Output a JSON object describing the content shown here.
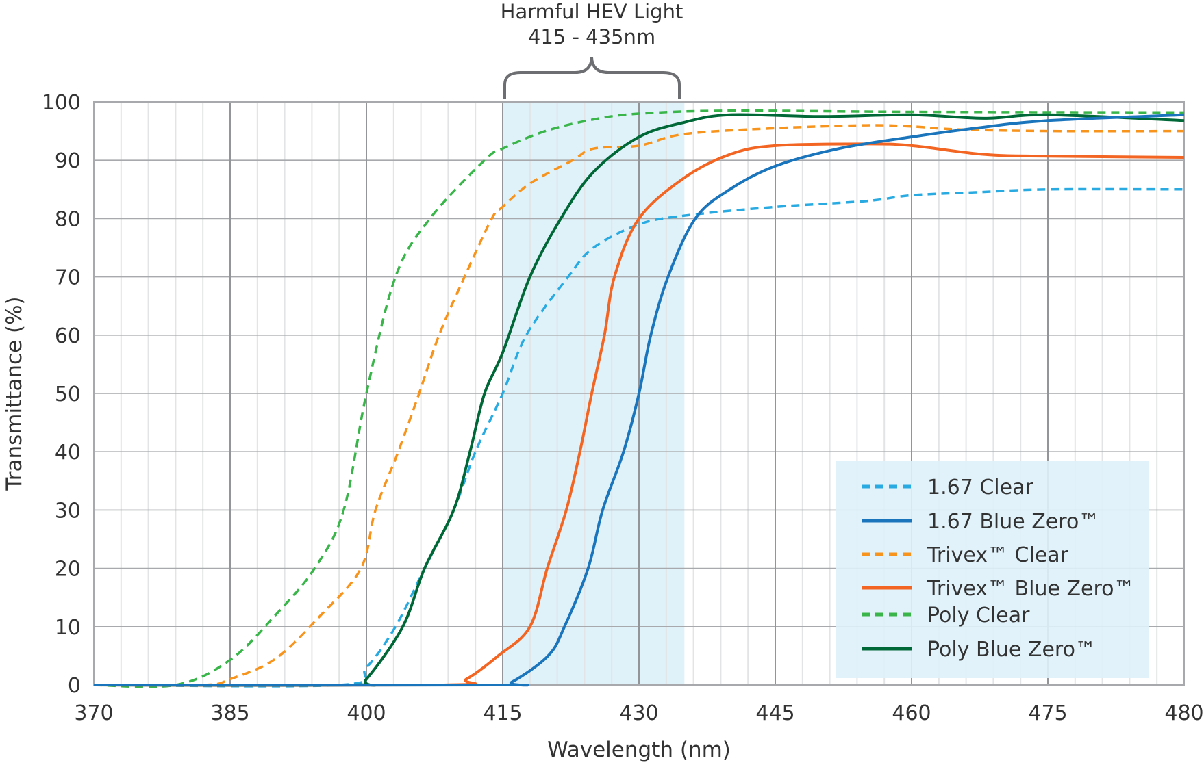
{
  "chart_data": {
    "type": "line",
    "xlabel": "Wavelength (nm)",
    "ylabel": "Transmittance (%)",
    "x_tick_labels": [
      "370",
      "385",
      "400",
      "415",
      "430",
      "445",
      "460",
      "475",
      "480"
    ],
    "y_tick_labels": [
      "0",
      "10",
      "20",
      "30",
      "40",
      "50",
      "60",
      "70",
      "80",
      "90",
      "100"
    ],
    "ylim": [
      0,
      100
    ],
    "xlim": [
      370,
      480
    ],
    "grid": true,
    "legend_placement": "bottom-right",
    "annotation": {
      "line1": "Harmful HEV Light",
      "line2": "415 - 435nm",
      "band": [
        415,
        435
      ],
      "band_color": "#dff1f9"
    },
    "series": [
      {
        "name": "1.67  Clear",
        "style": "dashed",
        "color": "#29abe2",
        "x": [
          370,
          397,
          400,
          403.2,
          406.4,
          409.6,
          412,
          415,
          417.6,
          422.2,
          425,
          430,
          435,
          445,
          455,
          460,
          467,
          475,
          480
        ],
        "y": [
          0,
          0,
          3,
          10,
          20,
          30,
          40,
          50,
          60,
          70,
          75,
          79,
          80.5,
          82,
          83,
          84,
          84.5,
          85,
          85
        ]
      },
      {
        "name": "1.67  Blue Zero™",
        "style": "solid",
        "color": "#1b75bc",
        "x": [
          370,
          414,
          416,
          420,
          421.8,
          424.4,
          426,
          428.3,
          430,
          431.3,
          433.2,
          436.2,
          440,
          445,
          452,
          460,
          467,
          475,
          480
        ],
        "y": [
          0,
          0,
          0.5,
          5,
          10,
          20,
          30,
          40,
          50,
          60,
          70,
          80,
          85,
          89,
          92,
          94,
          95.5,
          96.8,
          97.8
        ]
      },
      {
        "name": "Trivex™ Clear",
        "style": "dashed",
        "color": "#f7941d",
        "x": [
          370,
          382,
          385,
          390,
          395,
          399.4,
          401,
          403.5,
          405.8,
          408,
          410.8,
          413.8,
          415,
          418,
          422.7,
          425,
          430,
          435,
          445,
          455,
          460,
          465,
          475,
          480
        ],
        "y": [
          0,
          0,
          1,
          4.5,
          12,
          20,
          30,
          40,
          50,
          60,
          70,
          80,
          82,
          86,
          90,
          92,
          92.5,
          94.5,
          95.5,
          96,
          95.8,
          95.3,
          95,
          95
        ]
      },
      {
        "name": "Trivex™ Blue Zero™",
        "style": "solid",
        "color": "#f26522",
        "x": [
          370,
          408.5,
          411,
          414.5,
          418,
          419.9,
          422,
          423.5,
          424.8,
          426.2,
          427.3,
          430,
          435,
          440,
          445,
          455,
          460,
          468,
          475,
          480
        ],
        "y": [
          0,
          0,
          1,
          5,
          10,
          20,
          30,
          40,
          50,
          60,
          70,
          80,
          87,
          91,
          92.5,
          92.8,
          92.5,
          91,
          90.7,
          90.5
        ]
      },
      {
        "name": "Poly Clear",
        "style": "dashed",
        "color": "#39b54a",
        "x": [
          370,
          379,
          385,
          390,
          394.3,
          397.5,
          400,
          403.2,
          407,
          413,
          415,
          419.7,
          425,
          430,
          440,
          460,
          480
        ],
        "y": [
          0,
          0,
          4.3,
          12,
          20,
          30,
          50,
          70,
          80,
          90,
          92,
          95,
          97,
          98,
          98.5,
          98.3,
          98.2
        ]
      },
      {
        "name": "Poly  Blue Zero™",
        "style": "solid",
        "color": "#006837",
        "x": [
          370,
          398.5,
          400,
          404,
          406.4,
          409.6,
          411.4,
          413,
          415,
          418,
          421.4,
          425,
          430,
          435,
          440,
          450,
          460,
          468,
          475,
          480
        ],
        "y": [
          0,
          0,
          1,
          10,
          20,
          30,
          40,
          50,
          57,
          70,
          80,
          88,
          94,
          96.5,
          97.8,
          97.5,
          97.8,
          97.2,
          97.8,
          96.8
        ]
      }
    ]
  }
}
